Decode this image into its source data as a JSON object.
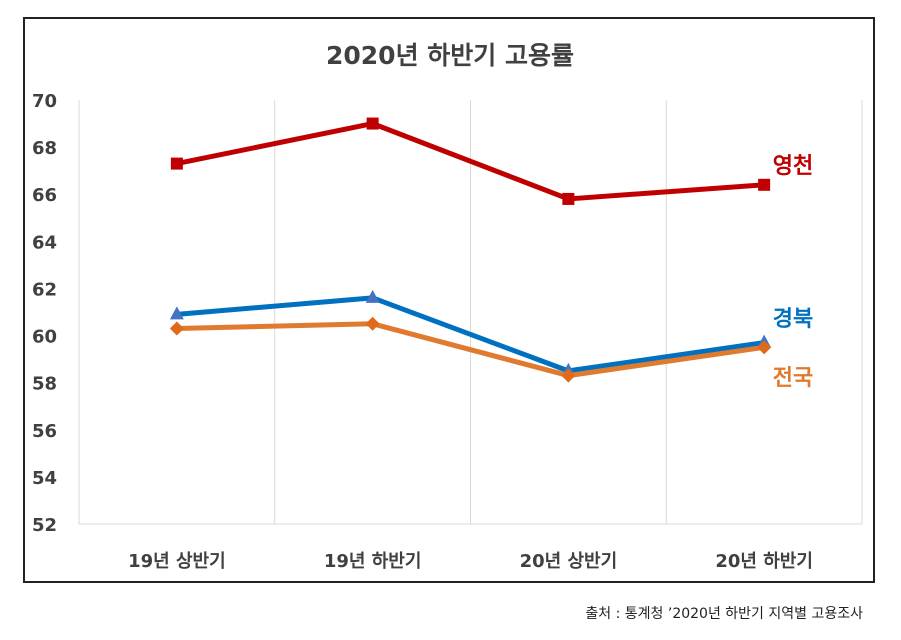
{
  "chart_data": {
    "type": "line",
    "title": "2020년 하반기 고용률",
    "categories": [
      "19년 상반기",
      "19년 하반기",
      "20년 상반기",
      "20년 하반기"
    ],
    "ylim": [
      52,
      70
    ],
    "yticks": [
      52,
      54,
      56,
      58,
      60,
      62,
      64,
      66,
      68,
      70
    ],
    "grid": "vertical",
    "legend": "inline-right",
    "series": [
      {
        "name": "영천",
        "values": [
          67.3,
          69.0,
          65.8,
          66.4
        ],
        "color": "#c00000",
        "marker": "square"
      },
      {
        "name": "경북",
        "values": [
          60.9,
          61.6,
          58.5,
          59.7
        ],
        "color": "#0070c0",
        "marker": "triangle"
      },
      {
        "name": "전국",
        "values": [
          60.3,
          60.5,
          58.3,
          59.5
        ],
        "color": "#e07a2f",
        "marker": "diamond"
      }
    ]
  },
  "source": "출처 : 통계청 ’2020년 하반기 지역별 고용조사",
  "colors": {
    "marker_triangle": "#4472c4",
    "marker_diamond": "#e06a1a",
    "marker_square": "#c00000",
    "grid": "#d9d9d9",
    "axis_text": "#404040"
  }
}
